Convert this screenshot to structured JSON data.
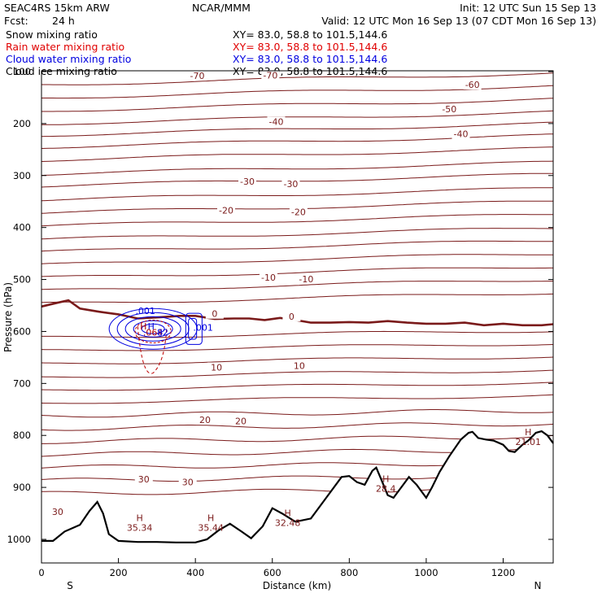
{
  "header": {
    "model": "SEAC4RS 15km ARW",
    "org": "NCAR/MMM",
    "init": "Init: 12 UTC Sun 15 Sep 13",
    "fcst_label": "Fcst:",
    "fcst_value": "24 h",
    "valid": "Valid: 12 UTC Mon 16 Sep 13 (07 CDT Mon 16 Sep 13)"
  },
  "legend": [
    {
      "label": "Snow mixing ratio",
      "xy": "XY=  83.0, 58.8 to 101.5,144.6",
      "color": "#000000"
    },
    {
      "label": "Rain water mixing ratio",
      "xy": "XY=  83.0, 58.8 to 101.5,144.6",
      "color": "#e00000"
    },
    {
      "label": "Cloud water mixing ratio",
      "xy": "XY=  83.0, 58.8 to 101.5,144.6",
      "color": "#0000e0"
    },
    {
      "label": "Cloud ice mixing ratio",
      "xy": "XY=  83.0, 58.8 to 101.5,144.6",
      "color": "#000000"
    }
  ],
  "chart_data": {
    "type": "cross-section",
    "xlabel": "Distance (km)",
    "ylabel": "Pressure (hPa)",
    "xlim": [
      0,
      1330
    ],
    "ylim": [
      1050,
      100
    ],
    "xticks": [
      0,
      200,
      400,
      600,
      800,
      1000,
      1200
    ],
    "yticks": [
      100,
      200,
      300,
      400,
      500,
      600,
      700,
      800,
      900,
      1000
    ],
    "ytick_labels": [
      "100",
      "200",
      "300",
      "400",
      "500",
      "600",
      "700",
      "800",
      "900",
      "1000"
    ],
    "x_end_labels": {
      "left": "S",
      "right": "N"
    },
    "temperature_color": "#7a1a1a",
    "terrain": [
      [
        0,
        1003
      ],
      [
        30,
        1003
      ],
      [
        60,
        985
      ],
      [
        100,
        972
      ],
      [
        125,
        945
      ],
      [
        145,
        928
      ],
      [
        160,
        950
      ],
      [
        175,
        990
      ],
      [
        200,
        1003
      ],
      [
        250,
        1005
      ],
      [
        300,
        1005
      ],
      [
        350,
        1006
      ],
      [
        400,
        1006
      ],
      [
        430,
        1000
      ],
      [
        460,
        983
      ],
      [
        490,
        970
      ],
      [
        520,
        985
      ],
      [
        545,
        998
      ],
      [
        575,
        975
      ],
      [
        600,
        940
      ],
      [
        625,
        950
      ],
      [
        660,
        966
      ],
      [
        700,
        960
      ],
      [
        740,
        920
      ],
      [
        780,
        880
      ],
      [
        800,
        878
      ],
      [
        820,
        890
      ],
      [
        840,
        895
      ],
      [
        860,
        868
      ],
      [
        870,
        862
      ],
      [
        885,
        888
      ],
      [
        900,
        915
      ],
      [
        915,
        920
      ],
      [
        935,
        900
      ],
      [
        955,
        880
      ],
      [
        975,
        895
      ],
      [
        990,
        910
      ],
      [
        1000,
        920
      ],
      [
        1015,
        900
      ],
      [
        1035,
        870
      ],
      [
        1060,
        840
      ],
      [
        1090,
        808
      ],
      [
        1110,
        795
      ],
      [
        1120,
        793
      ],
      [
        1135,
        805
      ],
      [
        1155,
        808
      ],
      [
        1175,
        810
      ],
      [
        1200,
        818
      ],
      [
        1215,
        830
      ],
      [
        1230,
        832
      ],
      [
        1250,
        818
      ],
      [
        1265,
        810
      ],
      [
        1285,
        795
      ],
      [
        1300,
        792
      ],
      [
        1315,
        800
      ],
      [
        1330,
        815
      ]
    ],
    "freezing_line": [
      [
        0,
        552
      ],
      [
        40,
        545
      ],
      [
        70,
        540
      ],
      [
        100,
        556
      ],
      [
        150,
        562
      ],
      [
        200,
        567
      ],
      [
        250,
        575
      ],
      [
        300,
        573
      ],
      [
        360,
        570
      ],
      [
        400,
        570
      ],
      [
        450,
        576
      ],
      [
        500,
        575
      ],
      [
        540,
        575
      ],
      [
        580,
        578
      ],
      [
        620,
        574
      ],
      [
        660,
        578
      ],
      [
        700,
        583
      ],
      [
        750,
        583
      ],
      [
        800,
        582
      ],
      [
        850,
        583
      ],
      [
        900,
        580
      ],
      [
        950,
        583
      ],
      [
        1000,
        585
      ],
      [
        1050,
        585
      ],
      [
        1100,
        583
      ],
      [
        1150,
        588
      ],
      [
        1200,
        585
      ],
      [
        1250,
        588
      ],
      [
        1300,
        588
      ],
      [
        1330,
        586
      ]
    ],
    "isotherm_levels": [
      125,
      150,
      175,
      200,
      222,
      245,
      270,
      297,
      320,
      347,
      372,
      397,
      423,
      447,
      472,
      497,
      522,
      547,
      612,
      637,
      662,
      688,
      712,
      737,
      762,
      787,
      812,
      837,
      862,
      887,
      912
    ],
    "isotherm_labels": [
      {
        "x": 405,
        "p": 108,
        "text": "-70"
      },
      {
        "x": 595,
        "p": 107,
        "text": "-70"
      },
      {
        "x": 1120,
        "p": 125,
        "text": "-60"
      },
      {
        "x": 1060,
        "p": 172,
        "text": "-50"
      },
      {
        "x": 610,
        "p": 196,
        "text": "-40"
      },
      {
        "x": 1090,
        "p": 220,
        "text": "-40"
      },
      {
        "x": 535,
        "p": 311,
        "text": "-30"
      },
      {
        "x": 648,
        "p": 316,
        "text": "-30"
      },
      {
        "x": 480,
        "p": 367,
        "text": "-20"
      },
      {
        "x": 668,
        "p": 370,
        "text": "-20"
      },
      {
        "x": 590,
        "p": 496,
        "text": "-10"
      },
      {
        "x": 688,
        "p": 499,
        "text": "-10"
      },
      {
        "x": 450,
        "p": 566,
        "text": "0"
      },
      {
        "x": 650,
        "p": 571,
        "text": "0"
      },
      {
        "x": 455,
        "p": 669,
        "text": "10"
      },
      {
        "x": 670,
        "p": 666,
        "text": "10"
      },
      {
        "x": 425,
        "p": 770,
        "text": "20"
      },
      {
        "x": 518,
        "p": 772,
        "text": "20"
      },
      {
        "x": 266,
        "p": 884,
        "text": "30"
      },
      {
        "x": 380,
        "p": 890,
        "text": "30"
      },
      {
        "x": 42,
        "p": 947,
        "text": "30"
      }
    ],
    "max_labels": [
      {
        "x": 255,
        "p": 965,
        "h": "H",
        "v": "35.34"
      },
      {
        "x": 440,
        "p": 965,
        "h": "H",
        "v": "35.44"
      },
      {
        "x": 640,
        "p": 955,
        "h": "H",
        "v": "32.48"
      },
      {
        "x": 895,
        "p": 890,
        "h": "H",
        "v": "28.4"
      },
      {
        "x": 1265,
        "p": 800,
        "h": "H",
        "v": "21.01"
      }
    ],
    "cloud_labels": [
      {
        "x": 270,
        "p": 560,
        "text": ".001",
        "color": "#0000e0"
      },
      {
        "x": 420,
        "p": 592,
        "text": ".001",
        "color": "#0000e0"
      },
      {
        "x": 265,
        "p": 590,
        "text": "H",
        "color": "#b00000"
      },
      {
        "x": 285,
        "p": 590,
        "text": "H",
        "color": "#0000e0"
      },
      {
        "x": 290,
        "p": 602,
        "text": ".064",
        "color": "#b00000"
      },
      {
        "x": 315,
        "p": 602,
        "text": "82",
        "color": "#0000e0"
      }
    ],
    "grid": false
  }
}
